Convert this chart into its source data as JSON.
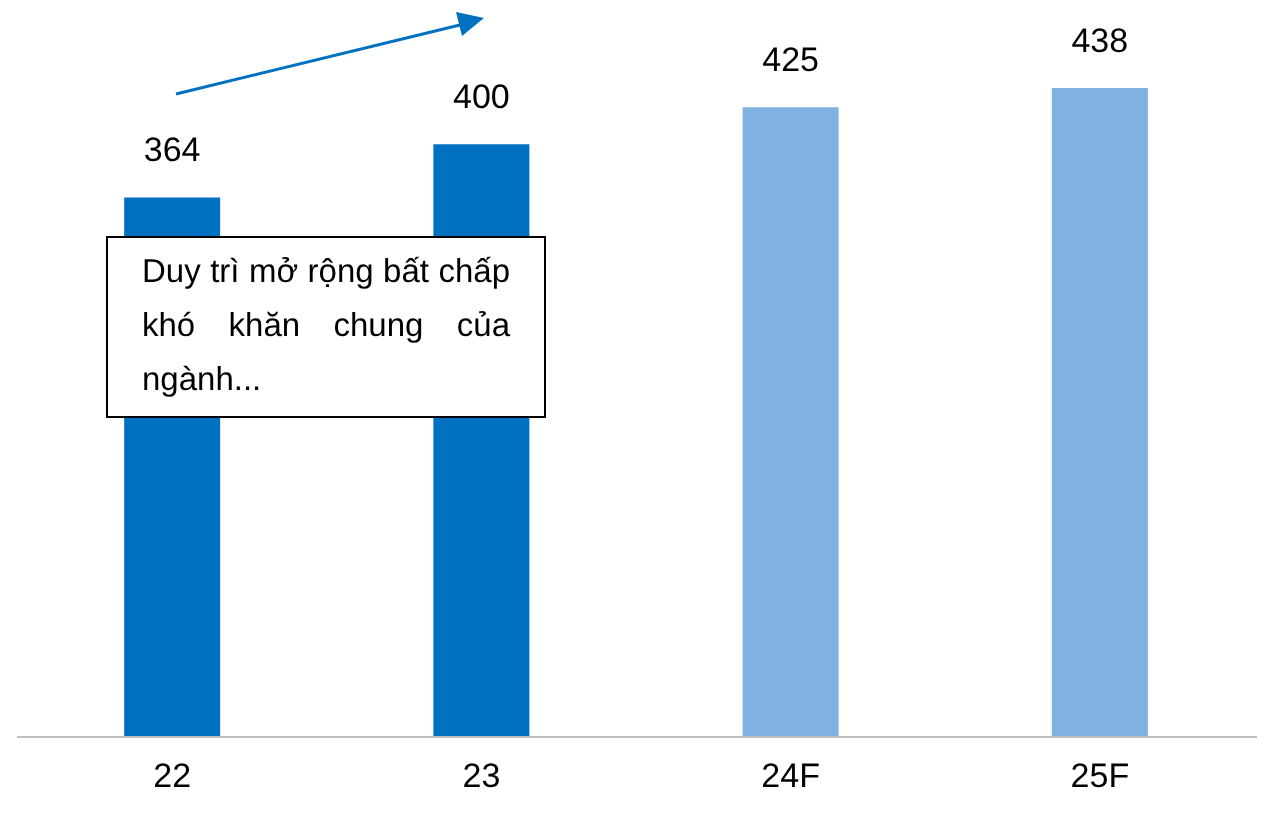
{
  "chart_data": {
    "type": "bar",
    "categories": [
      "22",
      "23",
      "24F",
      "25F"
    ],
    "values": [
      364,
      400,
      425,
      438
    ],
    "colors": [
      "#0070c0",
      "#0070c0",
      "#7fb2e0",
      "#7fb2e0"
    ],
    "data_labels": true,
    "annotations": [
      "Duy trì mở rộng bất chấp khó khăn chung của ngành..."
    ]
  }
}
